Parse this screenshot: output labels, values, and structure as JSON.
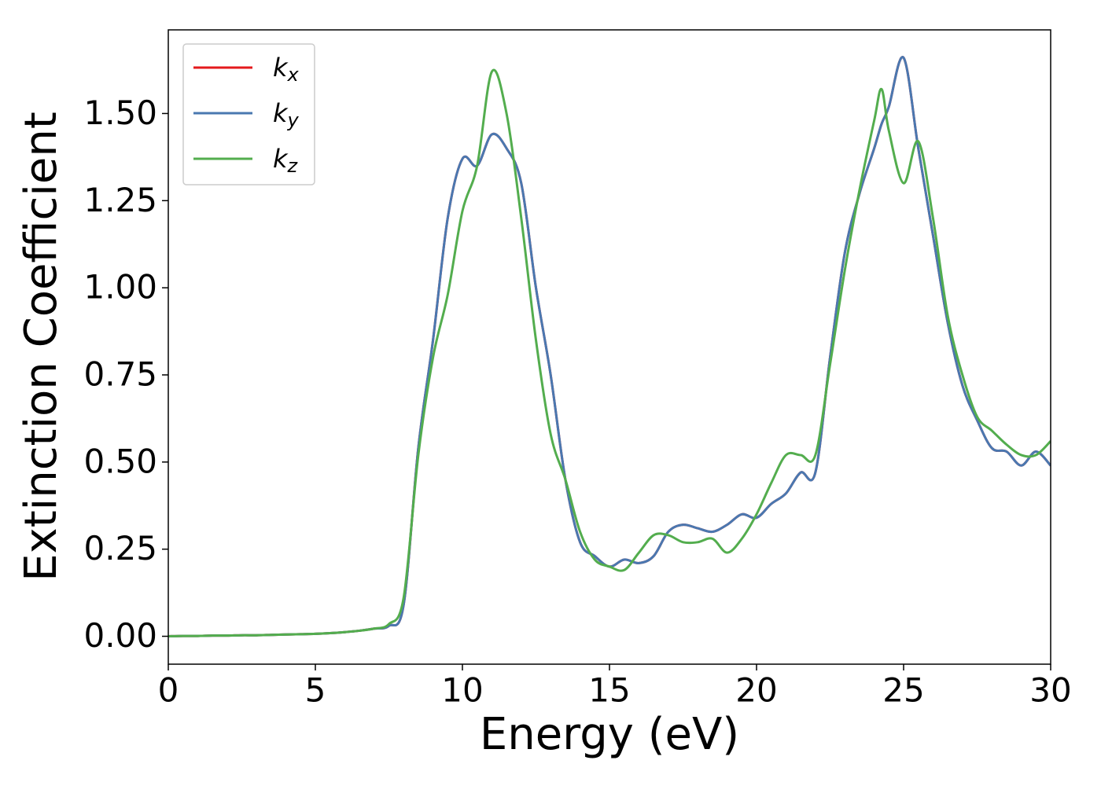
{
  "chart_data": {
    "type": "line",
    "xlabel": "Energy (eV)",
    "ylabel": "Extinction Coefficient",
    "x": [
      0,
      0.5,
      1,
      1.5,
      2,
      2.5,
      3,
      3.5,
      4,
      4.5,
      5,
      5.5,
      6,
      6.5,
      7,
      7.5,
      8,
      8.5,
      9,
      9.5,
      10,
      10.5,
      11,
      11.5,
      12,
      12.5,
      13,
      13.5,
      14,
      14.5,
      15,
      15.5,
      16,
      16.5,
      17,
      17.5,
      18,
      18.5,
      19,
      19.5,
      20,
      20.5,
      21,
      21.5,
      22,
      22.5,
      23,
      23.5,
      24,
      24.25,
      24.5,
      25,
      25.5,
      26,
      26.5,
      27,
      27.5,
      28,
      28.5,
      29,
      29.5,
      30
    ],
    "series": [
      {
        "name": "kx",
        "color": "#e41a1c",
        "values": [
          0,
          0.001,
          0.001,
          0.002,
          0.002,
          0.003,
          0.003,
          0.004,
          0.005,
          0.006,
          0.007,
          0.009,
          0.012,
          0.016,
          0.022,
          0.03,
          0.09,
          0.54,
          0.85,
          1.2,
          1.37,
          1.35,
          1.44,
          1.4,
          1.3,
          1.0,
          0.75,
          0.45,
          0.27,
          0.23,
          0.2,
          0.22,
          0.21,
          0.23,
          0.3,
          0.32,
          0.31,
          0.3,
          0.32,
          0.35,
          0.34,
          0.38,
          0.41,
          0.47,
          0.47,
          0.8,
          1.1,
          1.27,
          1.4,
          1.47,
          1.52,
          1.66,
          1.4,
          1.15,
          0.9,
          0.72,
          0.62,
          0.54,
          0.53,
          0.49,
          0.53,
          0.49
        ]
      },
      {
        "name": "ky",
        "color": "#4a78b0",
        "values": [
          0,
          0.001,
          0.001,
          0.002,
          0.002,
          0.003,
          0.003,
          0.004,
          0.005,
          0.006,
          0.007,
          0.009,
          0.012,
          0.016,
          0.022,
          0.03,
          0.09,
          0.54,
          0.85,
          1.2,
          1.37,
          1.35,
          1.44,
          1.4,
          1.3,
          1.0,
          0.75,
          0.45,
          0.27,
          0.23,
          0.2,
          0.22,
          0.21,
          0.23,
          0.3,
          0.32,
          0.31,
          0.3,
          0.32,
          0.35,
          0.34,
          0.38,
          0.41,
          0.47,
          0.47,
          0.8,
          1.1,
          1.27,
          1.4,
          1.47,
          1.52,
          1.66,
          1.4,
          1.15,
          0.9,
          0.72,
          0.62,
          0.54,
          0.53,
          0.49,
          0.53,
          0.49
        ]
      },
      {
        "name": "kz",
        "color": "#53ad4e",
        "values": [
          0,
          0.001,
          0.001,
          0.002,
          0.002,
          0.003,
          0.003,
          0.004,
          0.005,
          0.006,
          0.007,
          0.009,
          0.012,
          0.016,
          0.022,
          0.035,
          0.11,
          0.52,
          0.8,
          0.98,
          1.22,
          1.35,
          1.62,
          1.5,
          1.2,
          0.85,
          0.58,
          0.45,
          0.3,
          0.22,
          0.2,
          0.19,
          0.24,
          0.29,
          0.29,
          0.27,
          0.27,
          0.28,
          0.24,
          0.28,
          0.35,
          0.44,
          0.52,
          0.52,
          0.52,
          0.78,
          1.05,
          1.28,
          1.48,
          1.57,
          1.45,
          1.3,
          1.42,
          1.2,
          0.92,
          0.75,
          0.63,
          0.59,
          0.55,
          0.52,
          0.52,
          0.56
        ]
      }
    ],
    "xlim": [
      0,
      30
    ],
    "xticks": [
      0,
      5,
      10,
      15,
      20,
      25,
      30
    ],
    "ylim": [
      -0.08,
      1.74
    ],
    "yticks": [
      {
        "value": 0,
        "label": "0.00"
      },
      {
        "value": 0.25,
        "label": "0.25"
      },
      {
        "value": 0.5,
        "label": "0.50"
      },
      {
        "value": 0.75,
        "label": "0.75"
      },
      {
        "value": 1,
        "label": "1.00"
      },
      {
        "value": 1.25,
        "label": "1.25"
      },
      {
        "value": 1.5,
        "label": "1.50"
      }
    ],
    "grid": false,
    "legend": "upper left"
  }
}
